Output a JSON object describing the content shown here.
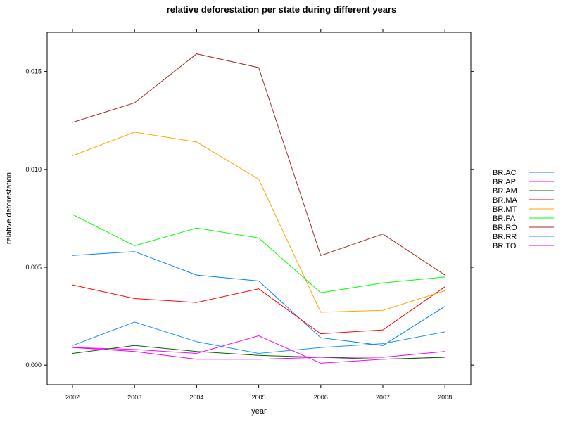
{
  "chart_data": {
    "type": "line",
    "title": "relative deforestation per state during different years",
    "xlabel": "year",
    "ylabel": "relative deforestation",
    "x": [
      "2002",
      "2003",
      "2004",
      "2005",
      "2006",
      "2007",
      "2008"
    ],
    "yticks": [
      "0.000",
      "0.005",
      "0.010",
      "0.015"
    ],
    "ylim": [
      -0.001,
      0.017
    ],
    "grid": false,
    "legend_position": "right",
    "series": [
      {
        "name": "BR.AC",
        "color": "#0080ff",
        "values": [
          0.0056,
          0.0058,
          0.0046,
          0.0043,
          0.0014,
          0.001,
          0.003
        ]
      },
      {
        "name": "BR.AP",
        "color": "#ff00ff",
        "values": [
          0.0009,
          0.0008,
          0.0006,
          0.0015,
          0.0001,
          0.0003,
          0.0004
        ]
      },
      {
        "name": "BR.AM",
        "color": "#006400",
        "values": [
          0.0006,
          0.001,
          0.0007,
          0.0005,
          0.0004,
          0.0003,
          0.0004
        ]
      },
      {
        "name": "BR.MA",
        "color": "#ff0000",
        "values": [
          0.0041,
          0.0034,
          0.0032,
          0.0039,
          0.0016,
          0.0018,
          0.004
        ]
      },
      {
        "name": "BR.MT",
        "color": "#ffa500",
        "values": [
          0.0107,
          0.0119,
          0.0114,
          0.0095,
          0.0027,
          0.0028,
          0.0038
        ]
      },
      {
        "name": "BR.PA",
        "color": "#00ff00",
        "values": [
          0.0077,
          0.0061,
          0.007,
          0.0065,
          0.0037,
          0.0042,
          0.0045
        ]
      },
      {
        "name": "BR.RO",
        "color": "#a52a2a",
        "values": [
          0.0124,
          0.0134,
          0.0159,
          0.0152,
          0.0056,
          0.0067,
          0.0046
        ]
      },
      {
        "name": "BR.RR",
        "color": "#1e90ff",
        "values": [
          0.001,
          0.0022,
          0.0012,
          0.0006,
          0.0009,
          0.0011,
          0.0017
        ]
      },
      {
        "name": "BR.TO",
        "color": "#ee00ee",
        "values": [
          0.0009,
          0.0007,
          0.0003,
          0.0003,
          0.0004,
          0.0004,
          0.0007
        ]
      }
    ]
  }
}
